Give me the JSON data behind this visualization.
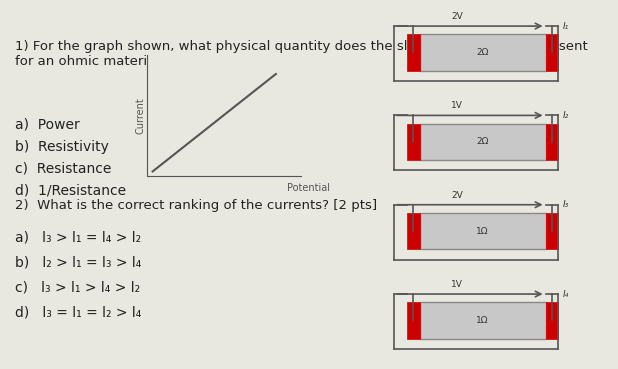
{
  "bg_color": "#e8e8e0",
  "text_color": "#222222",
  "title1": "1) For the graph shown, what physical quantity does the slope of the graph represent\nfor an ohmic material? [2 pts]",
  "options1": [
    "a)  Power",
    "b)  Resistivity",
    "c)  Resistance",
    "d)  1/Resistance"
  ],
  "graph_xlabel": "Potential",
  "graph_ylabel": "Current",
  "title2": "2)  What is the correct ranking of the currents? [2 pts]",
  "options2a": "a)   l₃ > l₁ = l₄ > l₂",
  "options2b": "b)   l₂ > l₁ = l₃ > l₄",
  "options2c": "c)   l₃ > l₁ > l₄ > l₂",
  "options2d": "d)   l₃ = l₁ = l₂ > l₄",
  "circuits": [
    {
      "voltage": "2V",
      "resistance": "2Ω",
      "current": "I₁"
    },
    {
      "voltage": "1V",
      "resistance": "2Ω",
      "current": "I₂"
    },
    {
      "voltage": "2V",
      "resistance": "1Ω",
      "current": "I₃"
    },
    {
      "voltage": "1V",
      "resistance": "1Ω",
      "current": "I₄"
    }
  ]
}
